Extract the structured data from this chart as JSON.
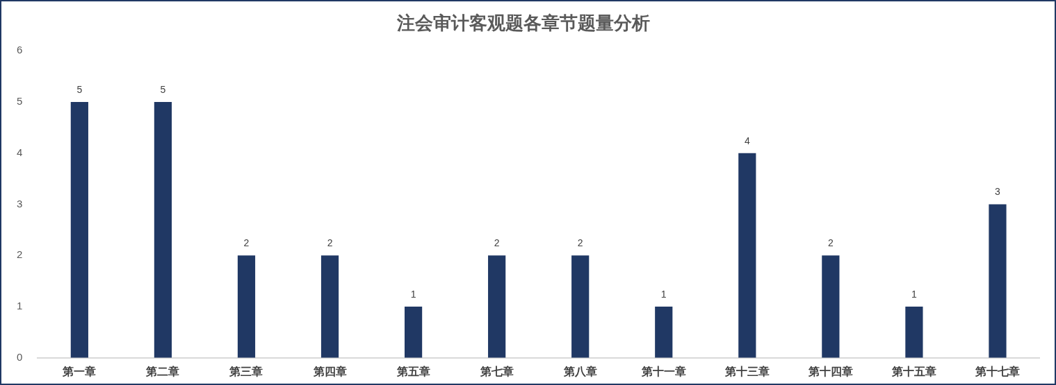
{
  "chart_data": {
    "type": "bar",
    "title": "注会审计客观题各章节题量分析",
    "categories": [
      "第一章",
      "第二章",
      "第三章",
      "第四章",
      "第五章",
      "第七章",
      "第八章",
      "第十一章",
      "第十三章",
      "第十四章",
      "第十五章",
      "第十七章"
    ],
    "values": [
      5,
      5,
      2,
      2,
      1,
      2,
      2,
      1,
      4,
      2,
      1,
      3
    ],
    "color": "#203864",
    "ylim": [
      0,
      6
    ],
    "yticks": [
      0,
      1,
      2,
      3,
      4,
      5,
      6
    ],
    "data_labels": true
  }
}
